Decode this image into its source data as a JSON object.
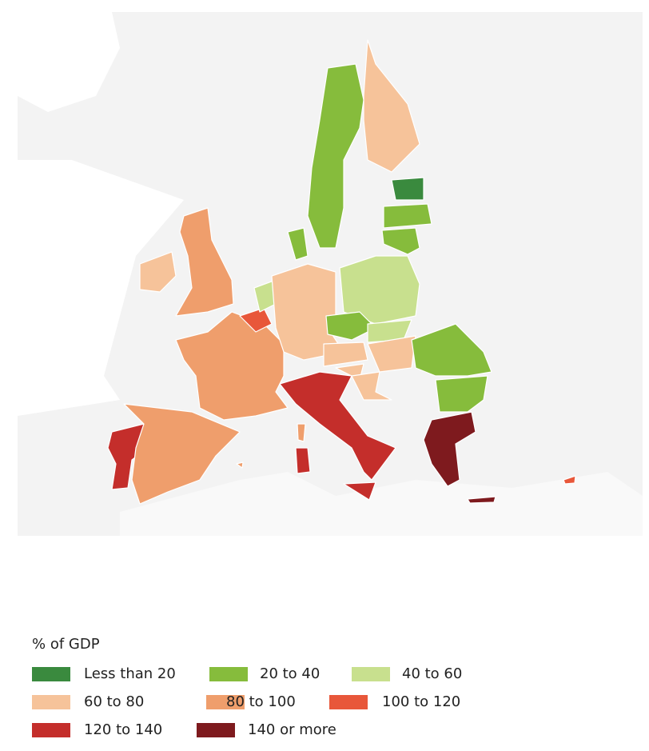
{
  "legend": {
    "title": "% of GDP",
    "items": [
      {
        "label": "Less than 20",
        "color": "#3a8a3e"
      },
      {
        "label": "20 to 40",
        "color": "#86bc3c"
      },
      {
        "label": "40 to 60",
        "color": "#c8e08e"
      },
      {
        "label": "60 to 80",
        "color": "#f6c39a"
      },
      {
        "label": "80 to 100",
        "color": "#ef9e6c"
      },
      {
        "label": "100 to 120",
        "color": "#e8573a"
      },
      {
        "label": "120 to 140",
        "color": "#c42e2b"
      },
      {
        "label": "140 or more",
        "color": "#7e1a1e"
      }
    ]
  }
}
